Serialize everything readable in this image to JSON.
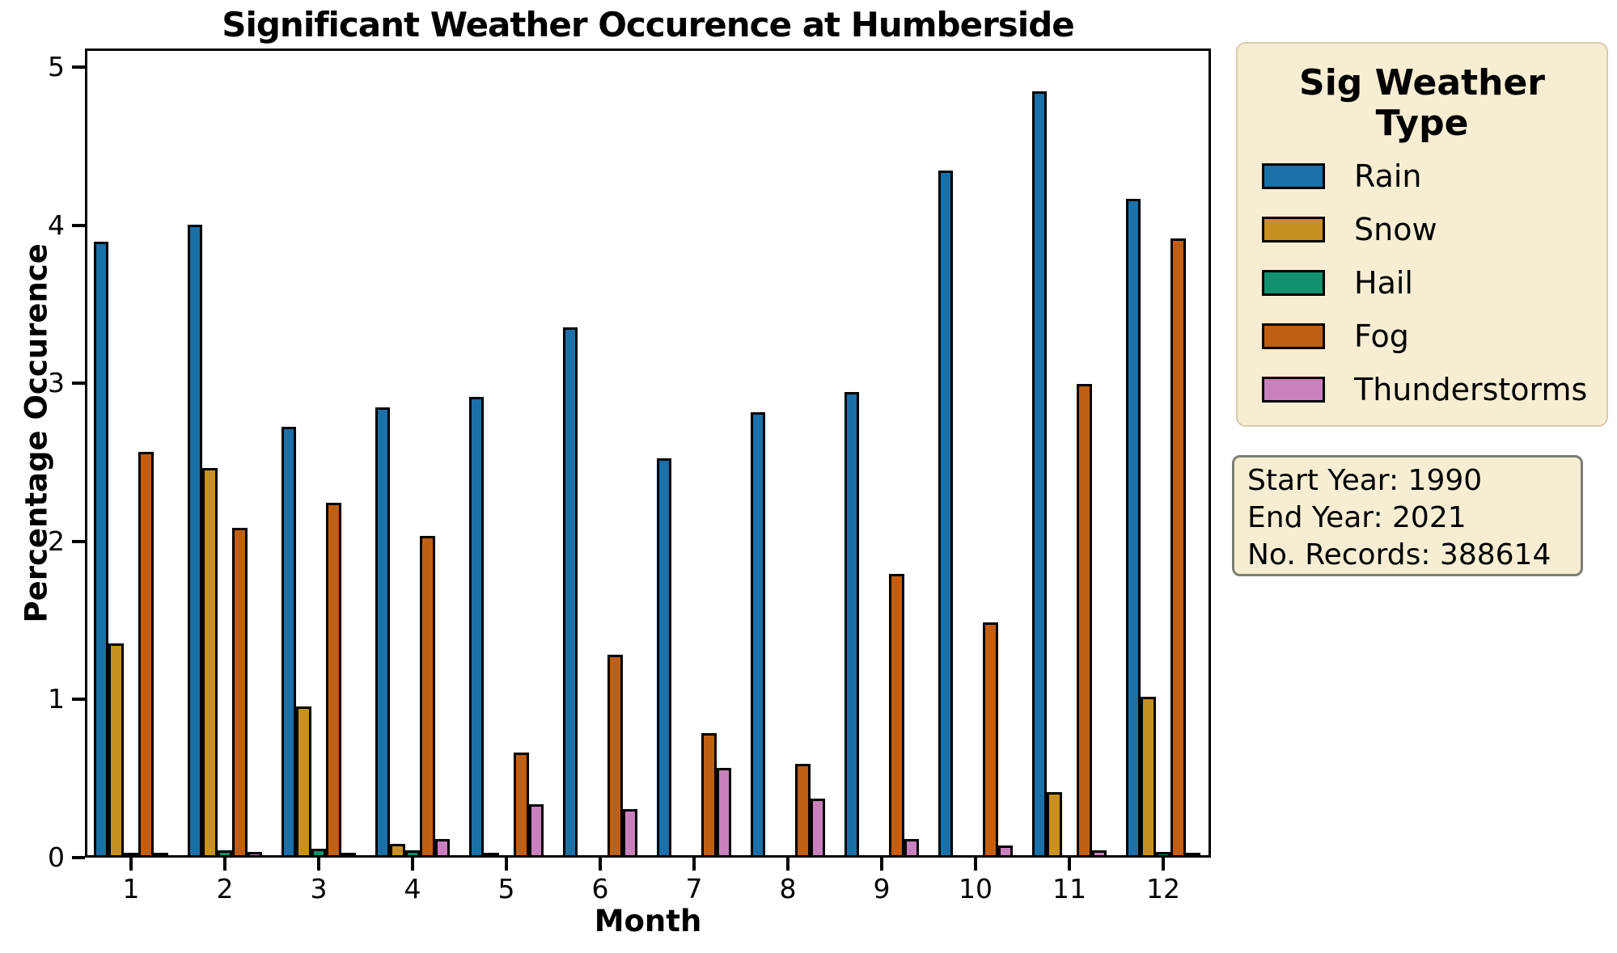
{
  "title": "Significant Weather Occurence at Humberside",
  "axes": {
    "x_label": "Month",
    "y_label": "Percentage Occurence",
    "y_ticks": [
      "0",
      "1",
      "2",
      "3",
      "4",
      "5"
    ],
    "x_ticks": [
      "1",
      "2",
      "3",
      "4",
      "5",
      "6",
      "7",
      "8",
      "9",
      "10",
      "11",
      "12"
    ]
  },
  "legend": {
    "title_lines": [
      "Sig Weather",
      "Type"
    ],
    "entries": [
      {
        "label": "Rain",
        "color": "#1a70a8"
      },
      {
        "label": "Snow",
        "color": "#c8911f"
      },
      {
        "label": "Hail",
        "color": "#12916e"
      },
      {
        "label": "Fog",
        "color": "#c05f11"
      },
      {
        "label": "Thunderstorms",
        "color": "#c981bd"
      }
    ]
  },
  "info_box": {
    "lines": [
      "Start Year: 1990",
      "End Year: 2021",
      "No. Records: 388614"
    ]
  },
  "chart_data": {
    "type": "bar",
    "title": "Significant Weather Occurence at Humberside",
    "xlabel": "Month",
    "ylabel": "Percentage Occurence",
    "categories": [
      1,
      2,
      3,
      4,
      5,
      6,
      7,
      8,
      9,
      10,
      11,
      12
    ],
    "series": [
      {
        "name": "Rain",
        "color": "#1a70a8",
        "values": [
          3.88,
          3.99,
          2.71,
          2.83,
          2.9,
          3.34,
          2.51,
          2.8,
          2.93,
          4.33,
          4.83,
          4.15
        ]
      },
      {
        "name": "Snow",
        "color": "#c8911f",
        "values": [
          1.34,
          2.45,
          0.94,
          0.07,
          0.01,
          0,
          0,
          0,
          0,
          0,
          0.4,
          1.0
        ]
      },
      {
        "name": "Hail",
        "color": "#12916e",
        "values": [
          0.01,
          0.03,
          0.04,
          0.03,
          0,
          0,
          0,
          0,
          0,
          0,
          0,
          0.02
        ]
      },
      {
        "name": "Fog",
        "color": "#c05f11",
        "values": [
          2.55,
          2.07,
          2.23,
          2.02,
          0.65,
          1.27,
          0.77,
          0.58,
          1.78,
          1.47,
          2.98,
          3.9
        ]
      },
      {
        "name": "Thunderstorms",
        "color": "#c981bd",
        "values": [
          0.01,
          0.02,
          0.01,
          0.1,
          0.32,
          0.29,
          0.55,
          0.36,
          0.1,
          0.06,
          0.03,
          0.01
        ]
      }
    ],
    "ylim": [
      0,
      5
    ],
    "grid": false,
    "legend_position": "right",
    "annotations": [
      "Start Year: 1990",
      "End Year: 2021",
      "No. Records: 388614"
    ]
  }
}
